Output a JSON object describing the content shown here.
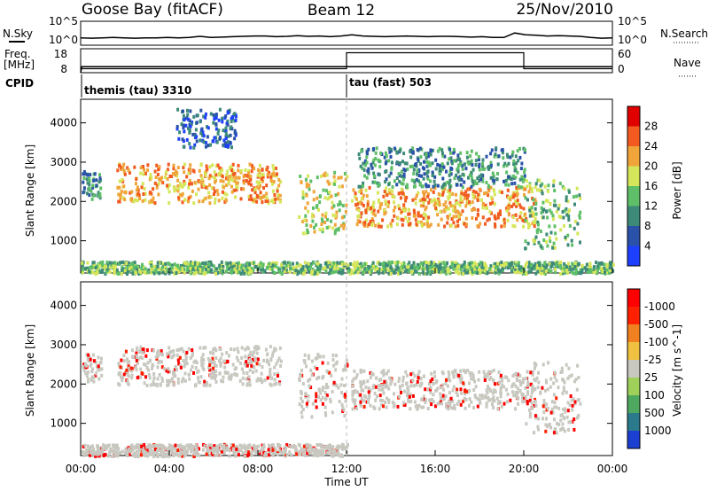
{
  "header": {
    "station": "Goose Bay (fitACF)",
    "beam": "Beam 12",
    "date": "25/Nov/2010"
  },
  "noise_panel": {
    "left_label": "N.Sky",
    "right_label": "N.Search",
    "ticks": [
      "10^5",
      "10^0"
    ],
    "sky_level_exponent": [
      1.5,
      1.4,
      1.5,
      1.6,
      1.5,
      1.4,
      1.5,
      1.5,
      1.6,
      1.5,
      1.6,
      1.9,
      1.6,
      1.7,
      1.8,
      1.9,
      2.0,
      2.0,
      1.8,
      1.9,
      2.1,
      1.9,
      2.0,
      1.8,
      2.0,
      2.3,
      2.0,
      1.9,
      1.8,
      1.9,
      2.0,
      1.9,
      1.8,
      1.9,
      1.9,
      1.8,
      1.7,
      1.8,
      1.6,
      1.6,
      2.8,
      2.3,
      2.2,
      2.0,
      2.1,
      2.0,
      1.9,
      1.6,
      1.4,
      1.5
    ]
  },
  "freq_panel": {
    "left_label": "Freq.",
    "left_unit": "[MHz]",
    "left_ticks": [
      "18",
      "8"
    ],
    "right_label": "Nave",
    "right_ticks": [
      "60",
      "0"
    ],
    "freq_mhz": {
      "x_hours": [
        0,
        0.05,
        23.95,
        24
      ],
      "values": [
        8,
        10.5,
        10.5,
        10.5
      ]
    },
    "nave": {
      "x_hours": [
        0,
        12,
        12,
        20,
        20,
        24
      ],
      "values": [
        10,
        10,
        50,
        50,
        10,
        10
      ]
    }
  },
  "cpid_panel": {
    "label": "CPID",
    "segments": [
      {
        "text": "themis (tau) 3310",
        "start_hour": 0
      },
      {
        "text": "tau (fast) 503",
        "start_hour": 12
      }
    ]
  },
  "chart_data": [
    {
      "type": "heatmap",
      "title": "Power",
      "ylabel": "Slant Range [km]",
      "xlabel": "",
      "xlim_hours": [
        0,
        24
      ],
      "ylim_km": [
        180,
        4600
      ],
      "yticks": [
        "1000",
        "2000",
        "3000",
        "4000"
      ],
      "colorbar": {
        "label": "Power [dB]",
        "ticks": [
          "4",
          "8",
          "12",
          "16",
          "20",
          "24",
          "28"
        ],
        "colors": [
          "#1d3fff",
          "#2a52a8",
          "#3d8a78",
          "#5fbf68",
          "#d6e65a",
          "#f0a43a",
          "#f25a1f",
          "#e00000"
        ]
      },
      "echo_regions": [
        {
          "name": "early evening arc",
          "x_hours": [
            0.05,
            0.9
          ],
          "range_km": [
            2100,
            2800
          ],
          "level": 8
        },
        {
          "name": "main arc",
          "x_hours": [
            1.6,
            9.0
          ],
          "range_km": [
            2000,
            3000
          ],
          "level": 18
        },
        {
          "name": "high range patch",
          "x_hours": [
            4.3,
            7.0
          ],
          "range_km": [
            3400,
            4400
          ],
          "level": 5
        },
        {
          "name": "descending echo",
          "x_hours": [
            9.8,
            12.0
          ],
          "range_km": [
            1200,
            2800
          ],
          "level": 17
        },
        {
          "name": "night band",
          "x_hours": [
            12.2,
            20.5
          ],
          "range_km": [
            1400,
            2400
          ],
          "level": 20
        },
        {
          "name": "upper speckle",
          "x_hours": [
            12.5,
            20.0
          ],
          "range_km": [
            2400,
            3400
          ],
          "level": 6
        },
        {
          "name": "dawn echoes",
          "x_hours": [
            20.0,
            22.5
          ],
          "range_km": [
            800,
            2600
          ],
          "level": 12
        },
        {
          "name": "near range clutter",
          "x_hours": [
            0,
            24
          ],
          "range_km": [
            200,
            500
          ],
          "level": 12
        }
      ]
    },
    {
      "type": "heatmap",
      "title": "Velocity",
      "ylabel": "Slant Range [km]",
      "xlabel": "Time UT",
      "xlim_hours": [
        0,
        24
      ],
      "xticks": [
        "00:00",
        "04:00",
        "08:00",
        "12:00",
        "16:00",
        "20:00",
        "00:00"
      ],
      "ylim_km": [
        180,
        4600
      ],
      "yticks": [
        "1000",
        "2000",
        "3000",
        "4000"
      ],
      "colorbar": {
        "label": "Velocity [m s^-1]",
        "ticks": [
          "1000",
          "500",
          "100",
          "25",
          "-25",
          "-100",
          "-500",
          "-1000"
        ],
        "colors": [
          "#1b3fd0",
          "#2a7a8c",
          "#4ea860",
          "#9ed05a",
          "#c8c8c0",
          "#f0c040",
          "#f08020",
          "#ff2000",
          "#ff0000"
        ]
      },
      "echo_regions": [
        {
          "name": "early evening arc",
          "x_hours": [
            0.05,
            0.9
          ],
          "range_km": [
            2100,
            2800
          ],
          "velocity": 0
        },
        {
          "name": "main arc",
          "x_hours": [
            1.6,
            9.0
          ],
          "range_km": [
            2000,
            3000
          ],
          "velocity": 0
        },
        {
          "name": "descending echo",
          "x_hours": [
            9.8,
            12.0
          ],
          "range_km": [
            1200,
            2800
          ],
          "velocity": 0
        },
        {
          "name": "night band",
          "x_hours": [
            12.2,
            20.5
          ],
          "range_km": [
            1400,
            2400
          ],
          "velocity": 0
        },
        {
          "name": "dawn echoes",
          "x_hours": [
            20.0,
            22.5
          ],
          "range_km": [
            800,
            2600
          ],
          "velocity": -100
        },
        {
          "name": "near range clutter",
          "x_hours": [
            0,
            12
          ],
          "range_km": [
            200,
            500
          ],
          "velocity": -100
        }
      ]
    }
  ]
}
